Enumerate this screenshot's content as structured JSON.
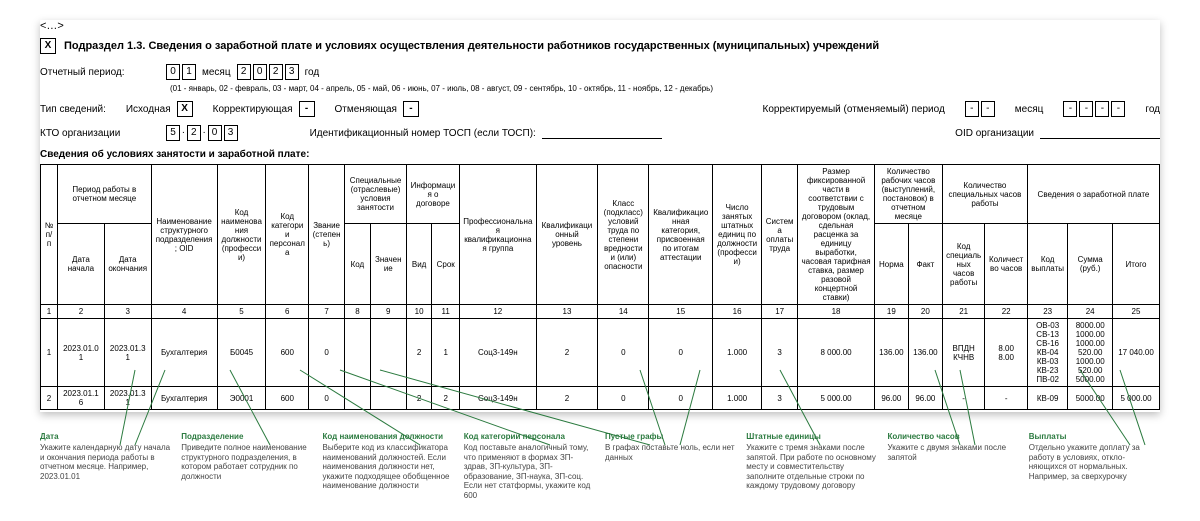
{
  "ellipsis": "<…>",
  "checkbox_mark": "X",
  "section_title": "Подраздел 1.3. Сведения о заработной плате и условиях осуществления деятельности работников государственных (муниципальных) учреждений",
  "period_label": "Отчетный период:",
  "period_month": [
    "0",
    "1"
  ],
  "period_month_word": "месяц",
  "period_year": [
    "2",
    "0",
    "2",
    "3"
  ],
  "period_year_word": "год",
  "period_note": "(01 - январь, 02 - февраль, 03 - март, 04 - апрель, 05 - май, 06 - июнь, 07 - июль, 08 - август, 09 - сентябрь, 10 - октябрь, 11 - ноябрь, 12 - декабрь)",
  "type_label": "Тип сведений:",
  "type_items": [
    {
      "label": "Исходная",
      "mark": "X"
    },
    {
      "label": "Корректирующая",
      "mark": "-"
    },
    {
      "label": "Отменяющая",
      "mark": "-"
    }
  ],
  "corr_label": "Корректируемый (отменяемый) период",
  "corr_month": [
    "-",
    "-"
  ],
  "corr_month_word": "месяц",
  "corr_year": [
    "-",
    "-",
    "-",
    "-"
  ],
  "corr_year_word": "год",
  "kto_label": "КТО организации",
  "kto_digits": [
    "5",
    ".",
    "2",
    ".",
    "0",
    "3"
  ],
  "tosp_label": "Идентификационный номер ТОСП (если ТОСП):",
  "oid_label": "OID организации",
  "table_title": "Сведения об условиях занятости и заработной плате:",
  "headers": {
    "n": "№ п/п",
    "period": "Период работы в отчетном месяце",
    "date_start": "Дата начала",
    "date_end": "Дата окончания",
    "unit": "Наименование структурного подразделения; OID",
    "job_code": "Код наименования должности (профессии)",
    "pers_cat": "Код категории персонала",
    "rank": "Звание (степень)",
    "special": "Специальные (отраслевые) условия занятости",
    "special_code": "Код",
    "special_val": "Значение",
    "contract": "Информация о договоре",
    "contract_type": "Вид",
    "contract_term": "Срок",
    "prof_group": "Профессиональная квалификационная группа",
    "qual_level": "Квалификационный уровень",
    "class": "Класс (подкласс) условий труда по степени вредности и (или) опасности",
    "qual_cat": "Квалификационная категория, присвоенная по итогам аттестации",
    "units": "Число занятых штатных единиц по должности (профессии)",
    "pay_sys": "Система оплаты труда",
    "fixed": "Размер фиксированной части в соответствии с трудовым договором (оклад, сдельная расценка за единицу выработки, часовая тарифная ставка, размер разовой концертной ставки)",
    "hours": "Количество рабочих часов (выступлений, постановок) в отчетном месяце",
    "norm": "Норма",
    "fact": "Факт",
    "spec_hours": "Количество специальных часов работы",
    "spec_hours_code": "Код специальных часов работы",
    "spec_hours_qty": "Количество часов",
    "pay_info": "Сведения о заработной плате",
    "pay_code": "Код выплаты",
    "pay_sum": "Сумма (руб.)",
    "total": "Итого"
  },
  "index_row": [
    "1",
    "2",
    "3",
    "4",
    "5",
    "6",
    "7",
    "8",
    "9",
    "10",
    "11",
    "12",
    "13",
    "14",
    "15",
    "16",
    "17",
    "18",
    "19",
    "20",
    "21",
    "22",
    "23",
    "24",
    "25"
  ],
  "rows": [
    {
      "n": "1",
      "ds": "2023.01.01",
      "de": "2023.01.31",
      "unit": "Бухгалтерия",
      "job": "Б0045",
      "cat": "600",
      "rank": "0",
      "sc": "",
      "sv": "",
      "ct": "2",
      "cterm": "1",
      "prof": "Соц3-149н",
      "ql": "2",
      "cls": "0",
      "qcat": "0",
      "units": "1.000",
      "psys": "3",
      "fixed": "8 000.00",
      "norm": "136.00",
      "fact": "136.00",
      "shc": "ВПДН\nКЧНВ",
      "shq": "8.00\n8.00",
      "pc": "ОВ-03\nСВ-13\nСВ-16\nКВ-04\nКВ-03\nКВ-23\nПВ-02",
      "ps": "8000.00\n1000.00\n1000.00\n520.00\n1000.00\n520.00\n5000.00",
      "tot": "17 040.00"
    },
    {
      "n": "2",
      "ds": "2023.01.16",
      "de": "2023.01.31",
      "unit": "Бухгалтерия",
      "job": "Э0001",
      "cat": "600",
      "rank": "0",
      "sc": "",
      "sv": "",
      "ct": "2",
      "cterm": "2",
      "prof": "Соц3-149н",
      "ql": "2",
      "cls": "0",
      "qcat": "0",
      "units": "1.000",
      "psys": "3",
      "fixed": "5 000.00",
      "norm": "96.00",
      "fact": "96.00",
      "shc": "-",
      "shq": "-",
      "pc": "КВ-09",
      "ps": "5000.00",
      "tot": "5 000.00"
    }
  ],
  "callouts": [
    {
      "t": "Дата",
      "b": "Укажите календарную дату начала и окончания периода работы в отчетном месяце. Например, 2023.01.01"
    },
    {
      "t": "Подразделение",
      "b": "Приведите полное наименование структурного подразделения, в котором работает сотрудник по должности"
    },
    {
      "t": "Код наименования должности",
      "b": "Выберите код из классификатора наименований должностей. Если наименования должности нет, укажите подходящее обоб­щен­ное наименование должности"
    },
    {
      "t": "Код категории персонала",
      "b": "Код поставьте аналогичный тому, что применяют в формах ЗП-здрав, ЗП-культура, ЗП-образование, ЗП-наука, ЗП-соц. Если нет стат­формы, укажите код 600"
    },
    {
      "t": "Пустые графы",
      "b": "В графах поставьте ноль, если нет данных"
    },
    {
      "t": "Штатные единицы",
      "b": "Укажите с тремя знаками после запятой. При работе по основному месту и совместительству заполните отдельные строки по каждому трудовому договору"
    },
    {
      "t": "Количество часов",
      "b": "Укажите с двумя знаками после запятой"
    },
    {
      "t": "Выплаты",
      "b": "Отдельно укажите доплату за работу в условиях, откло­няющихся от нормальных. Например, за сверхурочку"
    }
  ],
  "colors": {
    "callout_title": "#2b7a3f",
    "arrow": "#2b7a3f"
  }
}
